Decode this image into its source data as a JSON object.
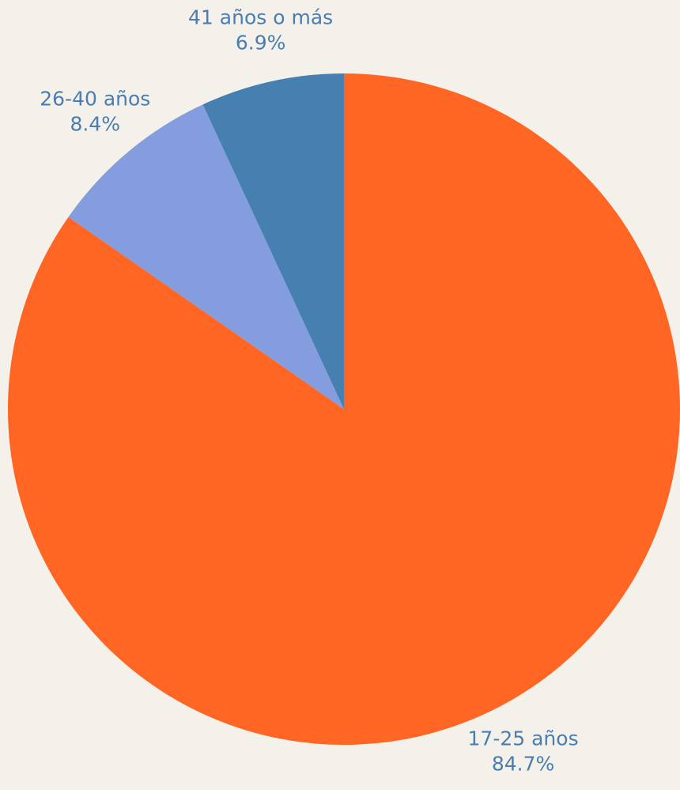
{
  "chart_data": {
    "type": "pie",
    "categories": [
      "17-25 años",
      "26-40 años",
      "41 años o más"
    ],
    "values": [
      84.7,
      8.4,
      6.9
    ],
    "value_labels": [
      "84.7%",
      "8.4%",
      "6.9%"
    ],
    "colors": [
      "#ff6624",
      "#839ddf",
      "#4680b0"
    ],
    "label_color": "#4a7db0",
    "background": "#f4f1ea"
  }
}
